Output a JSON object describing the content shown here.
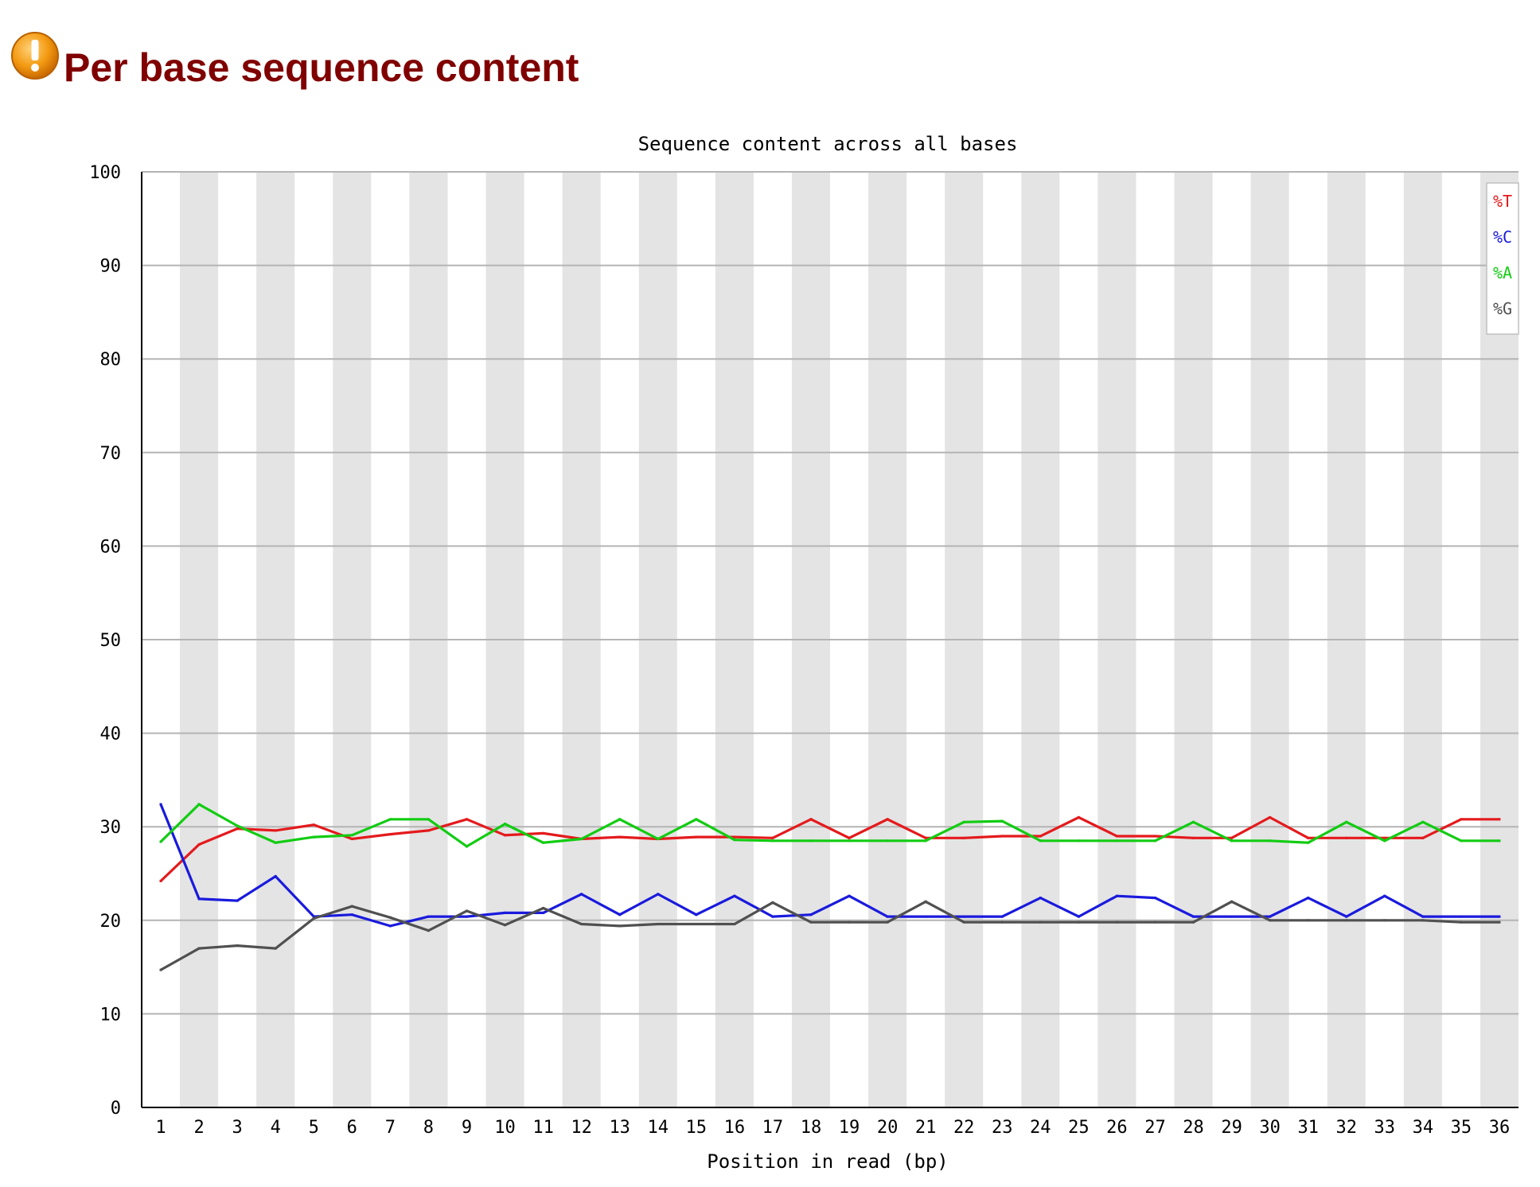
{
  "module": {
    "title": "Per base sequence content",
    "status_icon": "warning-icon",
    "status_color": "#f08c00"
  },
  "chart_data": {
    "type": "line",
    "title": "Sequence content across all bases",
    "xlabel": "Position in read (bp)",
    "ylabel": "",
    "ylim": [
      0,
      100
    ],
    "yticks": [
      0,
      10,
      20,
      30,
      40,
      50,
      60,
      70,
      80,
      90,
      100
    ],
    "grid": true,
    "legend_position": "top-right",
    "x": [
      "1",
      "2",
      "3",
      "4",
      "5",
      "6",
      "7",
      "8",
      "9",
      "10",
      "11",
      "12",
      "13",
      "14",
      "15",
      "16",
      "17",
      "18",
      "19",
      "20",
      "21",
      "22",
      "23",
      "24",
      "25",
      "26",
      "27",
      "28",
      "29",
      "30",
      "31",
      "32",
      "33",
      "34",
      "35",
      "36"
    ],
    "series": [
      {
        "name": "%T",
        "color": "#e41a1c",
        "values": [
          24.2,
          28.1,
          29.8,
          29.6,
          30.2,
          28.7,
          29.2,
          29.6,
          30.8,
          29.1,
          29.3,
          28.7,
          28.9,
          28.7,
          28.9,
          28.9,
          28.8,
          30.8,
          28.8,
          30.8,
          28.8,
          28.8,
          29.0,
          29.0,
          31.0,
          29.0,
          29.0,
          28.8,
          28.8,
          31.0,
          28.8,
          28.8,
          28.8,
          28.8,
          30.8,
          30.8
        ]
      },
      {
        "name": "%C",
        "color": "#1a1add",
        "values": [
          32.4,
          22.3,
          22.1,
          24.7,
          20.4,
          20.6,
          19.4,
          20.4,
          20.4,
          20.8,
          20.8,
          22.8,
          20.6,
          22.8,
          20.6,
          22.6,
          20.4,
          20.6,
          22.6,
          20.4,
          20.4,
          20.4,
          20.4,
          22.4,
          20.4,
          22.6,
          22.4,
          20.4,
          20.4,
          20.4,
          22.4,
          20.4,
          22.6,
          20.4,
          20.4,
          20.4
        ]
      },
      {
        "name": "%A",
        "color": "#12cc12",
        "values": [
          28.4,
          32.4,
          30.1,
          28.3,
          28.9,
          29.1,
          30.8,
          30.8,
          27.9,
          30.3,
          28.3,
          28.7,
          30.8,
          28.7,
          30.8,
          28.6,
          28.5,
          28.5,
          28.5,
          28.5,
          28.5,
          30.5,
          30.6,
          28.5,
          28.5,
          28.5,
          28.5,
          30.5,
          28.5,
          28.5,
          28.3,
          30.5,
          28.5,
          30.5,
          28.5,
          28.5
        ]
      },
      {
        "name": "%G",
        "color": "#505050",
        "values": [
          14.7,
          17.0,
          17.3,
          17.0,
          20.2,
          21.5,
          20.3,
          18.9,
          21.0,
          19.5,
          21.3,
          19.6,
          19.4,
          19.6,
          19.6,
          19.6,
          21.9,
          19.8,
          19.8,
          19.8,
          22.0,
          19.8,
          19.8,
          19.8,
          19.8,
          19.8,
          19.8,
          19.8,
          22.0,
          20.0,
          20.0,
          20.0,
          20.0,
          20.0,
          19.8,
          19.8
        ]
      }
    ]
  }
}
